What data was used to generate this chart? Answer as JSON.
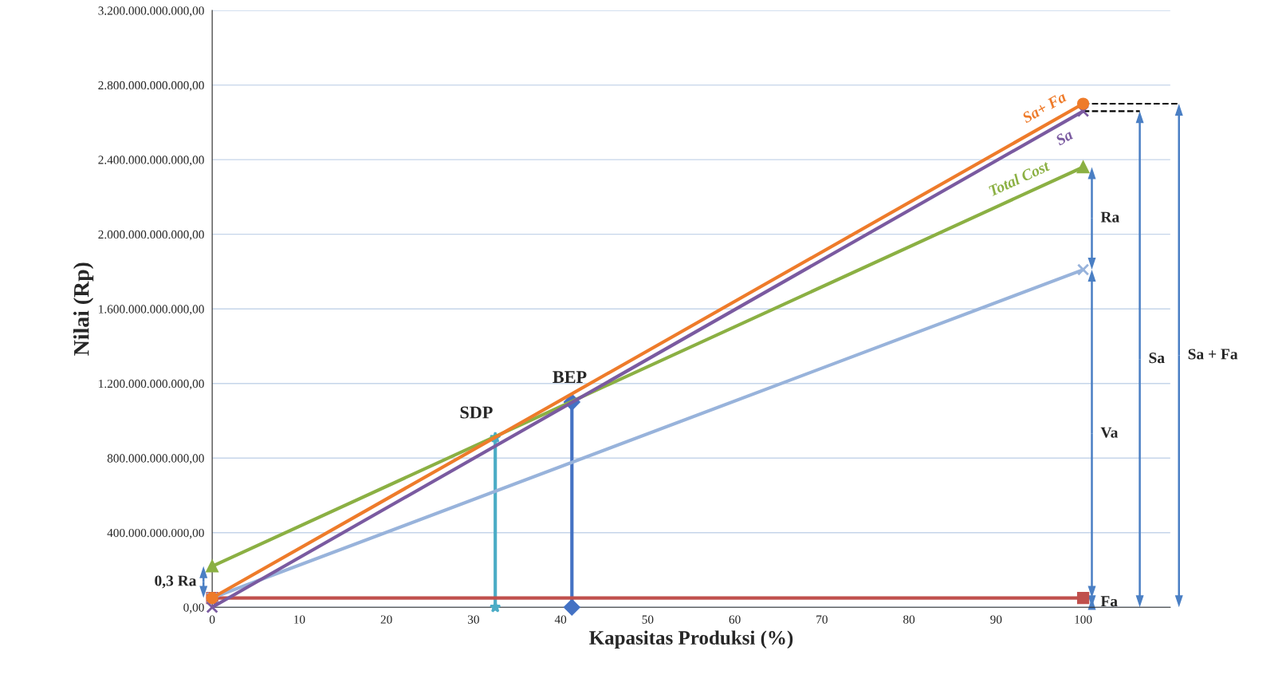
{
  "chart_data": {
    "type": "line",
    "xlabel": "Kapasitas Produksi (%)",
    "ylabel": "Nilai (Rp)",
    "xlim": [
      0,
      110
    ],
    "xticks": [
      0,
      10,
      20,
      30,
      40,
      50,
      60,
      70,
      80,
      90,
      100
    ],
    "ylim": [
      0,
      3200000000000
    ],
    "yticks": [
      {
        "value": 0,
        "label": "0,00"
      },
      {
        "value": 400000000000,
        "label": "400.000.000.000,00"
      },
      {
        "value": 800000000000,
        "label": "800.000.000.000,00"
      },
      {
        "value": 1200000000000,
        "label": "1.200.000.000.000,00"
      },
      {
        "value": 1600000000000,
        "label": "1.600.000.000.000,00"
      },
      {
        "value": 2000000000000,
        "label": "2.000.000.000.000,00"
      },
      {
        "value": 2400000000000,
        "label": "2.400.000.000.000,00"
      },
      {
        "value": 2800000000000,
        "label": "2.800.000.000.000,00"
      },
      {
        "value": 3200000000000,
        "label": "3.200.000.000.000,00"
      }
    ],
    "grid": "y",
    "series": [
      {
        "name": "Sa+ Fa",
        "color": "#ee7b2a",
        "marker": "circle",
        "x": [
          0,
          100
        ],
        "values": [
          50000000000,
          2700000000000
        ]
      },
      {
        "name": "Sa",
        "color": "#7a5aa0",
        "marker": "cross",
        "x": [
          0,
          100
        ],
        "values": [
          0,
          2660000000000
        ]
      },
      {
        "name": "Total Cost",
        "color": "#8bb043",
        "marker": "triangle",
        "x": [
          0,
          100
        ],
        "values": [
          220000000000,
          2360000000000
        ]
      },
      {
        "color": "#98b3db",
        "marker": "cross",
        "x": [
          0,
          100
        ],
        "values": [
          50000000000,
          1810000000000
        ]
      },
      {
        "color": "#c0504d",
        "marker": "square",
        "x": [
          0,
          100
        ],
        "values": [
          50000000000,
          50000000000
        ]
      },
      {
        "color": "#4bacc6",
        "marker": "star",
        "x": [
          32.5,
          32.5
        ],
        "values": [
          0,
          910000000000
        ]
      },
      {
        "color": "#4472c4",
        "marker": "diamond",
        "x": [
          41.3,
          41.3
        ],
        "values": [
          0,
          1100000000000
        ]
      }
    ],
    "annotations": [
      {
        "text": "SDP",
        "x": 32.5,
        "y": 910000000000
      },
      {
        "text": "BEP",
        "x": 41.3,
        "y": 1100000000000
      },
      "Ra",
      "Va",
      "Fa",
      "Sa",
      "Sa + Fa",
      "0,3 Ra"
    ]
  }
}
